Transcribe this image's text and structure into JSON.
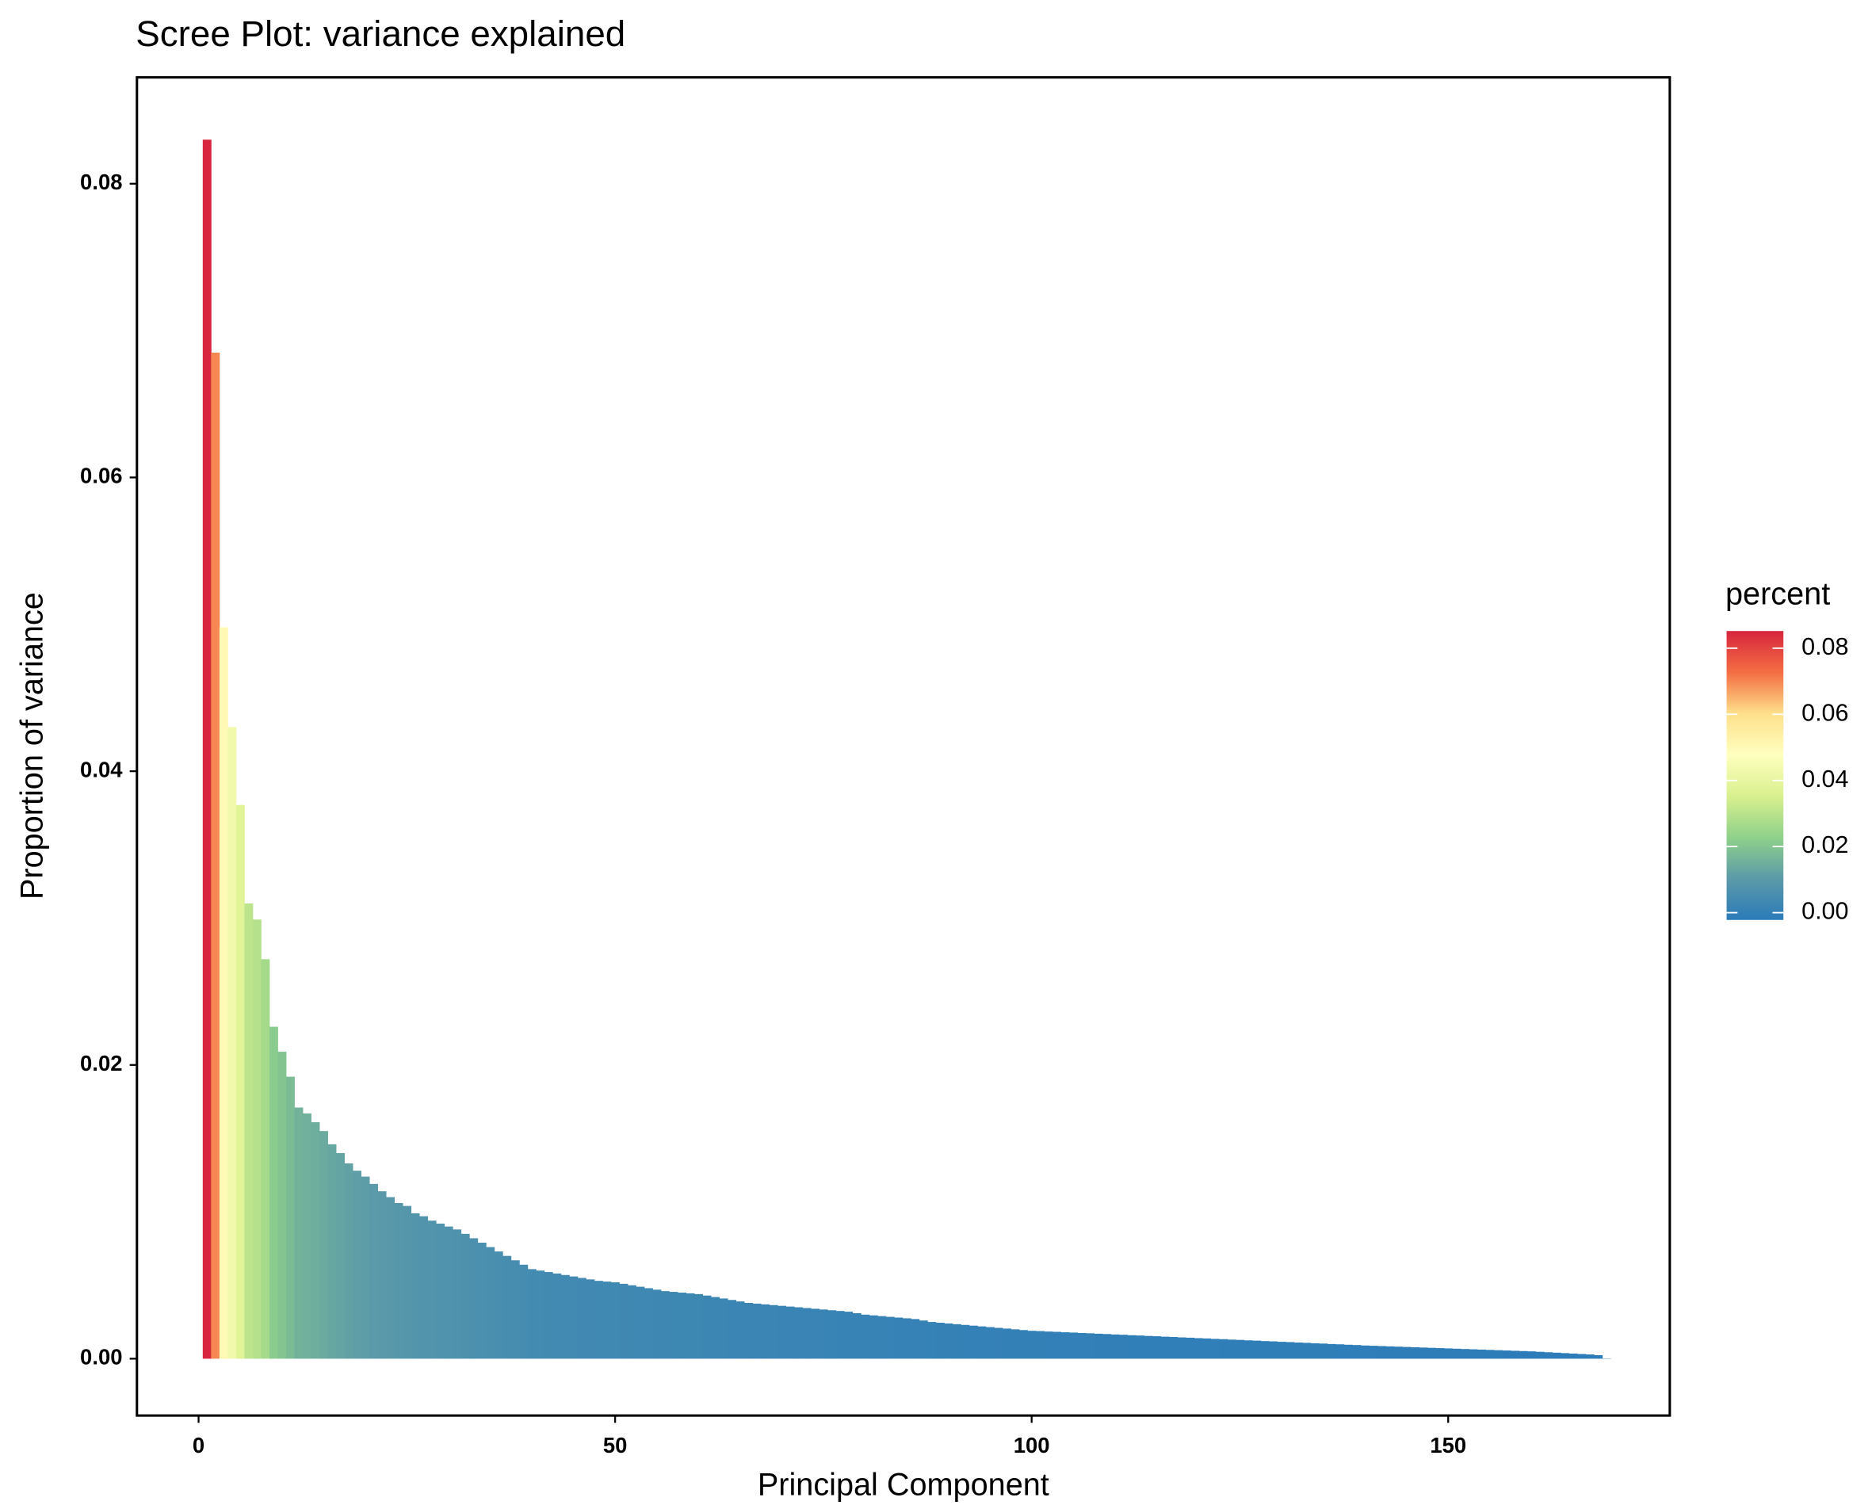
{
  "chart_data": {
    "type": "bar",
    "title": "Scree Plot: variance explained",
    "xlabel": "Principal Component",
    "ylabel": "Proportion of variance",
    "legend_title": "percent",
    "x": [
      1,
      2,
      3,
      4,
      5,
      6,
      7,
      8,
      9,
      10,
      11,
      12,
      13,
      14,
      15,
      16,
      17,
      18,
      19,
      20,
      21,
      22,
      23,
      24,
      25,
      26,
      27,
      28,
      29,
      30,
      31,
      32,
      33,
      34,
      35,
      36,
      37,
      38,
      39,
      40,
      41,
      42,
      43,
      44,
      45,
      46,
      47,
      48,
      49,
      50,
      51,
      52,
      53,
      54,
      55,
      56,
      57,
      58,
      59,
      60,
      61,
      62,
      63,
      64,
      65,
      66,
      67,
      68,
      69,
      70,
      71,
      72,
      73,
      74,
      75,
      76,
      77,
      78,
      79,
      80,
      81,
      82,
      83,
      84,
      85,
      86,
      87,
      88,
      89,
      90,
      91,
      92,
      93,
      94,
      95,
      96,
      97,
      98,
      99,
      100,
      101,
      102,
      103,
      104,
      105,
      106,
      107,
      108,
      109,
      110,
      111,
      112,
      113,
      114,
      115,
      116,
      117,
      118,
      119,
      120,
      121,
      122,
      123,
      124,
      125,
      126,
      127,
      128,
      129,
      130,
      131,
      132,
      133,
      134,
      135,
      136,
      137,
      138,
      139,
      140,
      141,
      142,
      143,
      144,
      145,
      146,
      147,
      148,
      149,
      150,
      151,
      152,
      153,
      154,
      155,
      156,
      157,
      158,
      159,
      160,
      161,
      162,
      163,
      164,
      165,
      166,
      167,
      168,
      169
    ],
    "values": [
      0.083,
      0.0685,
      0.0498,
      0.043,
      0.0377,
      0.031,
      0.0299,
      0.0272,
      0.0226,
      0.0209,
      0.0192,
      0.0171,
      0.0167,
      0.0161,
      0.0155,
      0.0146,
      0.014,
      0.0133,
      0.0128,
      0.0124,
      0.0119,
      0.0114,
      0.011,
      0.0106,
      0.0104,
      0.0099,
      0.0097,
      0.0094,
      0.0092,
      0.009,
      0.0088,
      0.0085,
      0.0082,
      0.0079,
      0.0076,
      0.0073,
      0.007,
      0.0067,
      0.0064,
      0.0061,
      0.006,
      0.0059,
      0.0058,
      0.0057,
      0.0056,
      0.0055,
      0.0054,
      0.0053,
      0.00525,
      0.0052,
      0.0051,
      0.005,
      0.0049,
      0.0048,
      0.0047,
      0.0046,
      0.00455,
      0.0045,
      0.00445,
      0.0044,
      0.0043,
      0.0042,
      0.0041,
      0.004,
      0.0039,
      0.0038,
      0.00375,
      0.0037,
      0.00365,
      0.0036,
      0.00355,
      0.0035,
      0.00345,
      0.0034,
      0.00335,
      0.0033,
      0.00325,
      0.0032,
      0.0031,
      0.003,
      0.00295,
      0.0029,
      0.00285,
      0.0028,
      0.00275,
      0.0027,
      0.0026,
      0.0025,
      0.00245,
      0.0024,
      0.00235,
      0.0023,
      0.00225,
      0.0022,
      0.00215,
      0.0021,
      0.00205,
      0.002,
      0.00195,
      0.0019,
      0.00188,
      0.00185,
      0.00183,
      0.0018,
      0.00178,
      0.00175,
      0.00173,
      0.0017,
      0.00168,
      0.00165,
      0.00163,
      0.0016,
      0.00158,
      0.00155,
      0.00153,
      0.0015,
      0.00148,
      0.00145,
      0.00143,
      0.0014,
      0.00138,
      0.00135,
      0.00133,
      0.0013,
      0.00128,
      0.00125,
      0.00123,
      0.0012,
      0.00118,
      0.00115,
      0.00113,
      0.0011,
      0.00108,
      0.00105,
      0.00103,
      0.001,
      0.00098,
      0.00095,
      0.00093,
      0.0009,
      0.00088,
      0.00086,
      0.00084,
      0.00082,
      0.0008,
      0.00078,
      0.00076,
      0.00074,
      0.00072,
      0.0007,
      0.00068,
      0.00066,
      0.00064,
      0.00062,
      0.0006,
      0.00058,
      0.00056,
      0.00054,
      0.00052,
      0.0005,
      0.00047,
      0.00044,
      0.00041,
      0.00038,
      0.00035,
      0.00032,
      0.00029,
      0.00024,
      2e-05
    ],
    "colorscale": [
      "#2b7bba",
      "#5b9aa8",
      "#8fd18a",
      "#d9f08e",
      "#ffffbf",
      "#fee08b",
      "#f46d43",
      "#d7263d"
    ],
    "colorlim": [
      0,
      0.083
    ],
    "colorbar_ticks": [
      {
        "value": 0,
        "label": "0.00"
      },
      {
        "value": 0.02,
        "label": "0.02"
      },
      {
        "value": 0.04,
        "label": "0.04"
      },
      {
        "value": 0.06,
        "label": "0.06"
      },
      {
        "value": 0.08,
        "label": "0.08"
      }
    ],
    "xlim": [
      -7.4,
      176.6
    ],
    "ylim": [
      -0.00387,
      0.08724
    ],
    "xticks": [
      0,
      50,
      100,
      150
    ],
    "yticks": [
      {
        "value": 0,
        "label": "0.00"
      },
      {
        "value": 0.02,
        "label": "0.02"
      },
      {
        "value": 0.04,
        "label": "0.04"
      },
      {
        "value": 0.06,
        "label": "0.06"
      },
      {
        "value": 0.08,
        "label": "0.08"
      }
    ],
    "grid": false
  }
}
